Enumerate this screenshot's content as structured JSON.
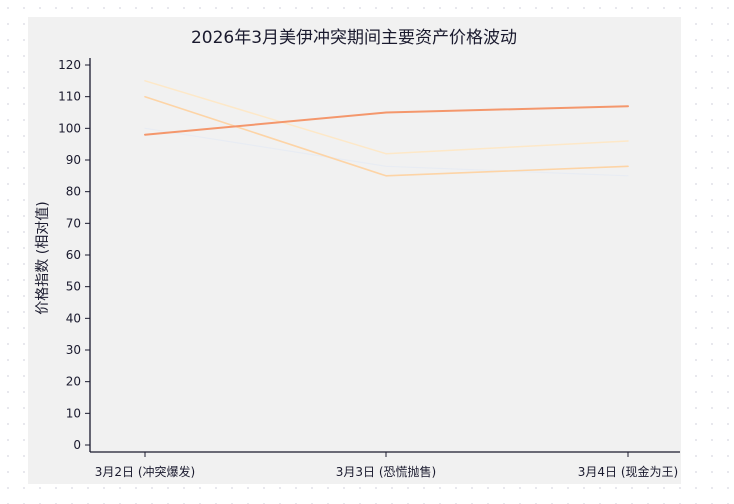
{
  "chart_data": {
    "type": "line",
    "title": "2026年3月美伊冲突期间主要资产价格波动",
    "xlabel": "",
    "ylabel": "价格指数 (相对值)",
    "categories": [
      "3月2日 (冲突爆发)",
      "3月3日 (恐慌抛售)",
      "3月4日 (现金为王)"
    ],
    "ylim": [
      0,
      120
    ],
    "yticks": [
      0,
      10,
      20,
      30,
      40,
      50,
      60,
      70,
      80,
      90,
      100,
      110,
      120
    ],
    "grid": false,
    "series": [
      {
        "values": [
          115,
          92,
          96
        ],
        "color": "#fde8c8",
        "width": 1.5
      },
      {
        "values": [
          100,
          88,
          85
        ],
        "color": "#e8ecf3",
        "width": 1.2
      },
      {
        "values": [
          110,
          85,
          88
        ],
        "color": "#fdd4a6",
        "width": 1.6
      },
      {
        "values": [
          98,
          105,
          107
        ],
        "color": "#f4976c",
        "width": 2.0
      }
    ]
  }
}
